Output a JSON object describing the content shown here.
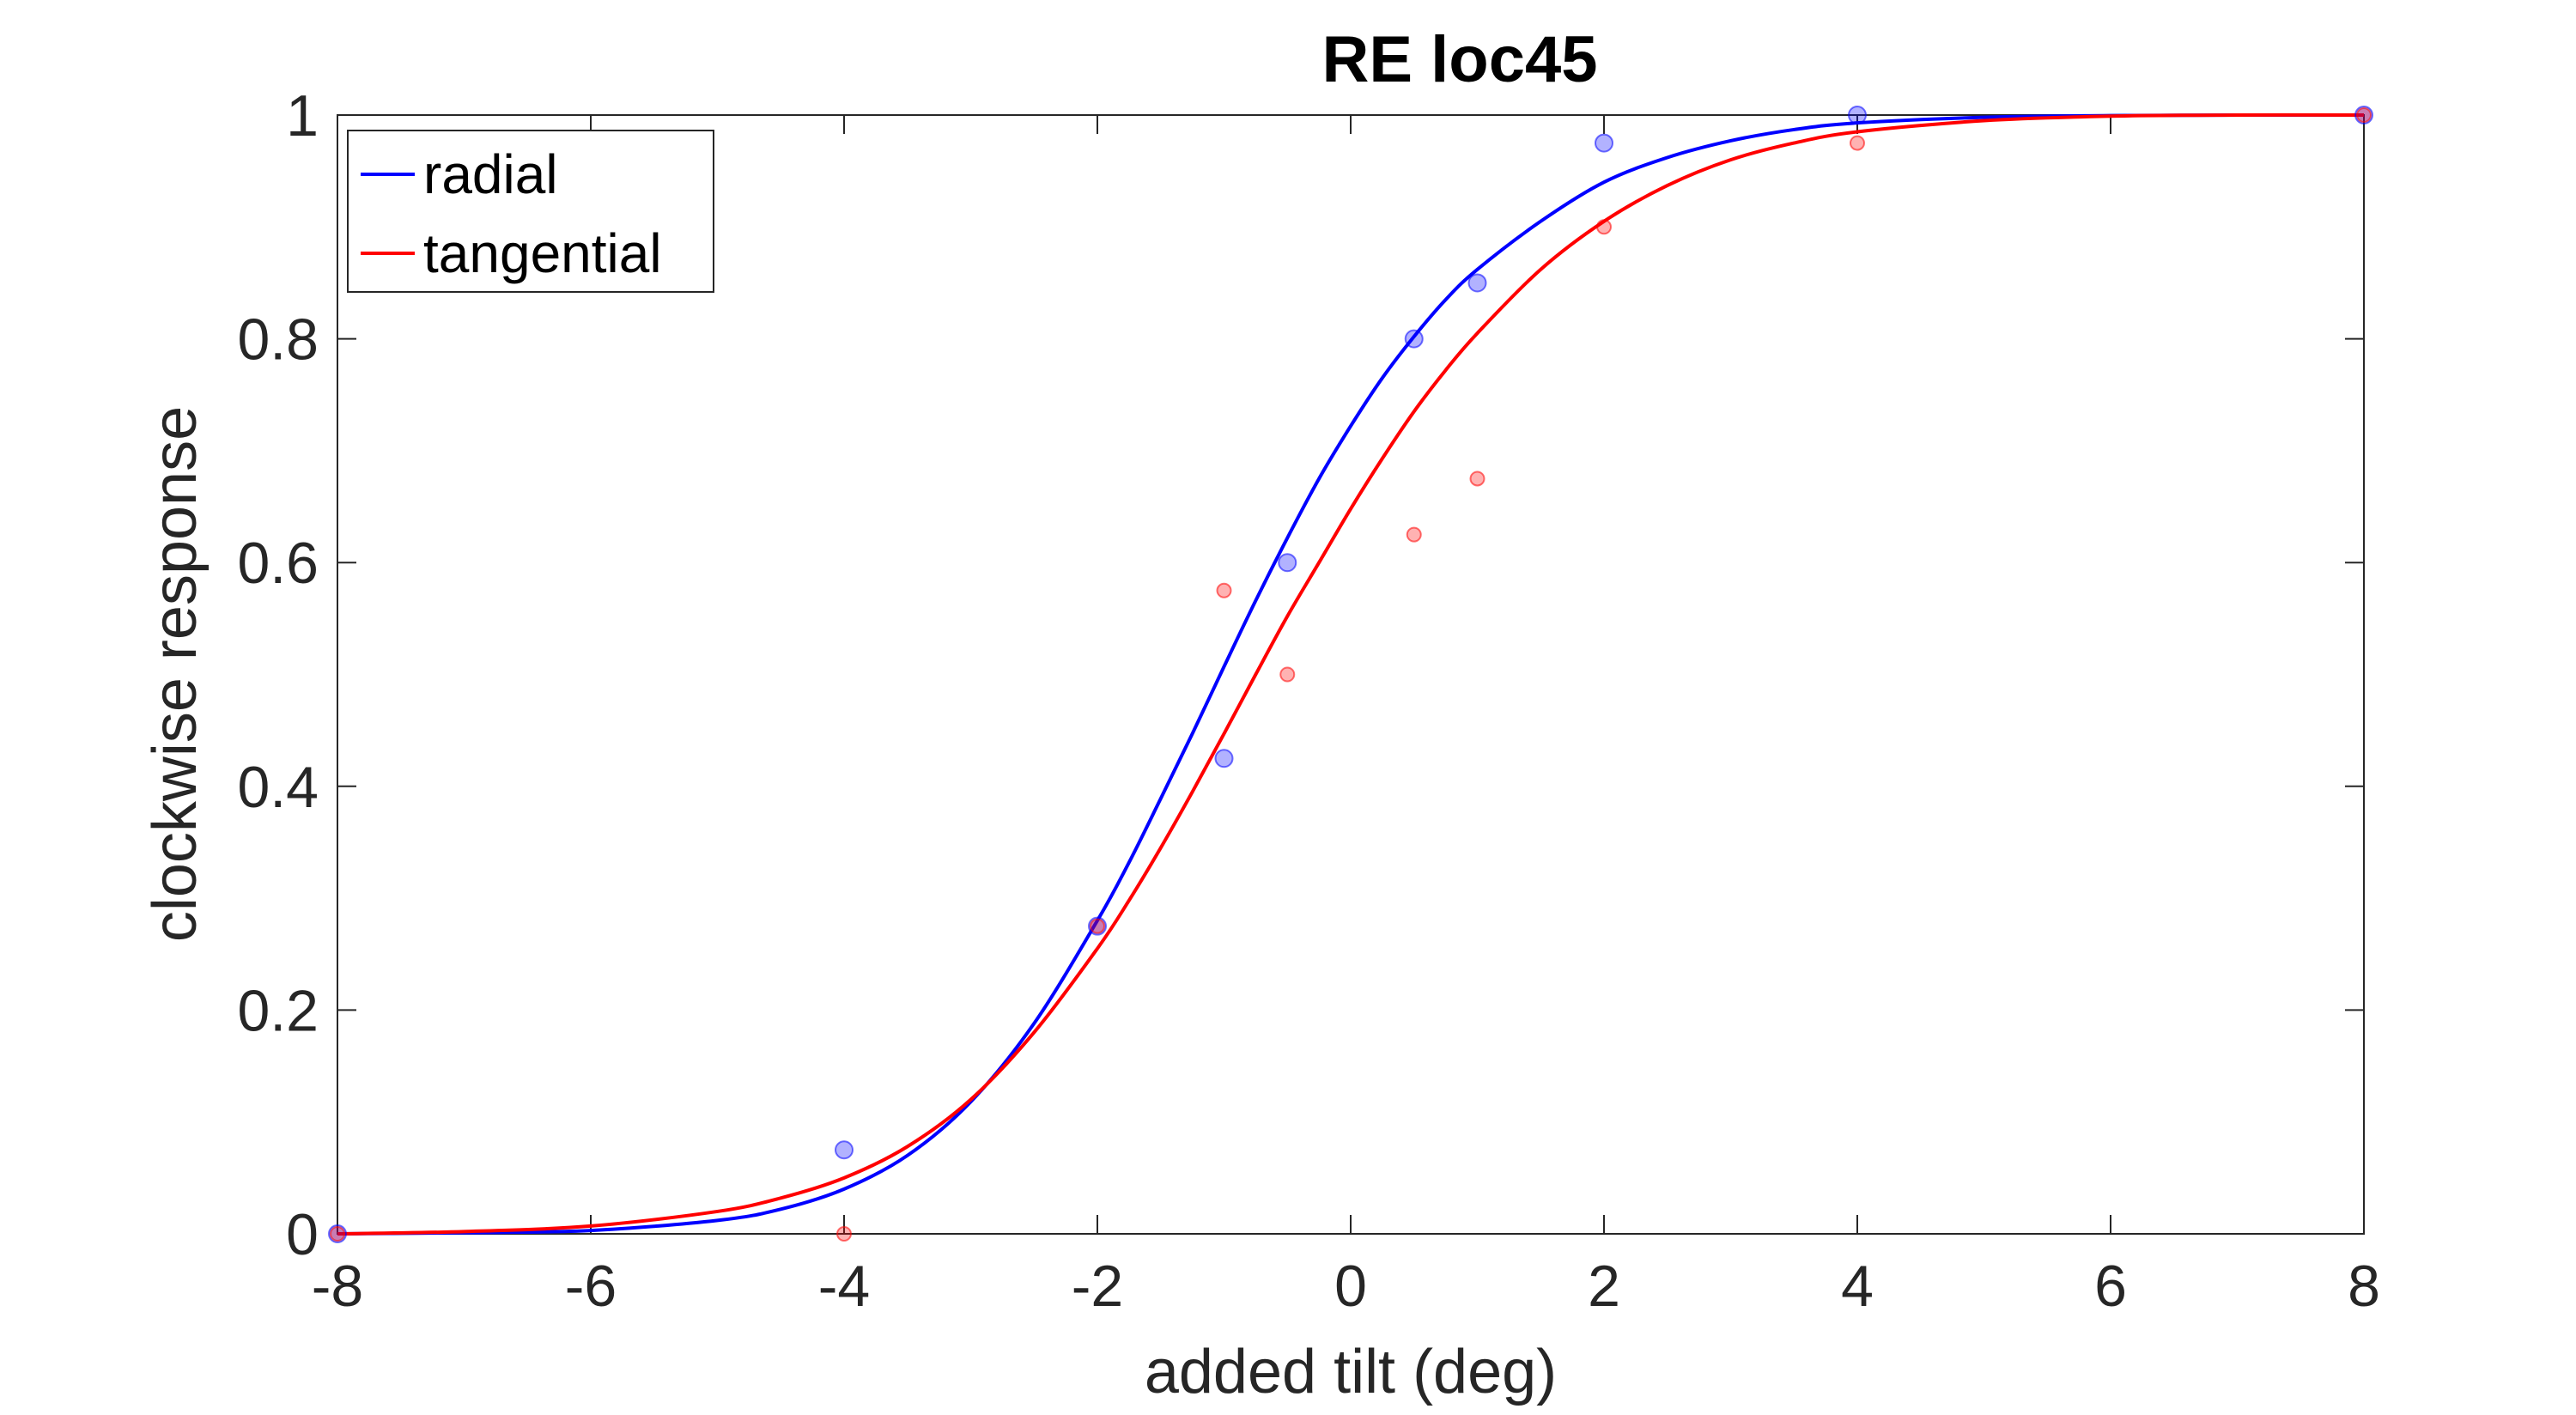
{
  "chart_data": {
    "type": "line",
    "title": "RE loc45",
    "xlabel": "added tilt (deg)",
    "ylabel": "clockwise response",
    "xlim": [
      -8,
      8
    ],
    "ylim": [
      0,
      1
    ],
    "xticks": [
      -8,
      -6,
      -4,
      -2,
      0,
      2,
      4,
      6,
      8
    ],
    "yticks": [
      0,
      0.2,
      0.4,
      0.6,
      0.8,
      1
    ],
    "xtick_labels": [
      "-8",
      "-6",
      "-4",
      "-2",
      "0",
      "2",
      "4",
      "6",
      "8"
    ],
    "ytick_labels": [
      "0",
      "0.2",
      "0.4",
      "0.6",
      "0.8",
      "1"
    ],
    "grid": false,
    "legend": {
      "location": "top-left"
    },
    "series": [
      {
        "name": "radial",
        "color": "#0000ff",
        "fit_curve": {
          "x": [
            -8,
            -7,
            -6,
            -5,
            -4.5,
            -4,
            -3.5,
            -3,
            -2.5,
            -2,
            -1.75,
            -1.5,
            -1.25,
            -1,
            -0.75,
            -0.5,
            -0.25,
            0,
            0.25,
            0.5,
            0.75,
            1,
            1.5,
            2,
            2.5,
            3,
            3.5,
            4,
            5,
            6,
            7,
            8
          ],
          "y": [
            0.0,
            0.001,
            0.003,
            0.012,
            0.022,
            0.04,
            0.07,
            0.118,
            0.188,
            0.28,
            0.332,
            0.389,
            0.447,
            0.507,
            0.566,
            0.622,
            0.675,
            0.722,
            0.765,
            0.802,
            0.835,
            0.862,
            0.905,
            0.94,
            0.962,
            0.977,
            0.987,
            0.993,
            0.998,
            0.9995,
            1.0,
            1.0
          ]
        },
        "points": {
          "x": [
            -8,
            -4,
            -2,
            -1,
            -0.5,
            0.5,
            1,
            2,
            4,
            8
          ],
          "y": [
            0,
            0.075,
            0.275,
            0.425,
            0.6,
            0.8,
            0.85,
            0.975,
            1,
            1
          ]
        }
      },
      {
        "name": "tangential",
        "color": "#ff0000",
        "fit_curve": {
          "x": [
            -8,
            -7,
            -6,
            -5,
            -4.5,
            -4,
            -3.5,
            -3,
            -2.5,
            -2,
            -1.75,
            -1.5,
            -1.25,
            -1,
            -0.75,
            -0.5,
            -0.25,
            0,
            0.25,
            0.5,
            0.75,
            1,
            1.5,
            2,
            2.5,
            3,
            3.5,
            4,
            5,
            6,
            7,
            8
          ],
          "y": [
            0.0,
            0.002,
            0.007,
            0.02,
            0.032,
            0.05,
            0.078,
            0.12,
            0.18,
            0.255,
            0.298,
            0.345,
            0.395,
            0.447,
            0.5,
            0.552,
            0.6,
            0.648,
            0.693,
            0.735,
            0.772,
            0.805,
            0.862,
            0.905,
            0.937,
            0.96,
            0.975,
            0.985,
            0.995,
            0.999,
            1.0,
            1.0
          ]
        },
        "points": {
          "x": [
            -8,
            -4,
            -2,
            -1,
            -0.5,
            0.5,
            1,
            2,
            4,
            8
          ],
          "y": [
            0,
            0,
            0.275,
            0.575,
            0.5,
            0.625,
            0.675,
            0.9,
            0.975,
            1
          ]
        }
      }
    ]
  }
}
